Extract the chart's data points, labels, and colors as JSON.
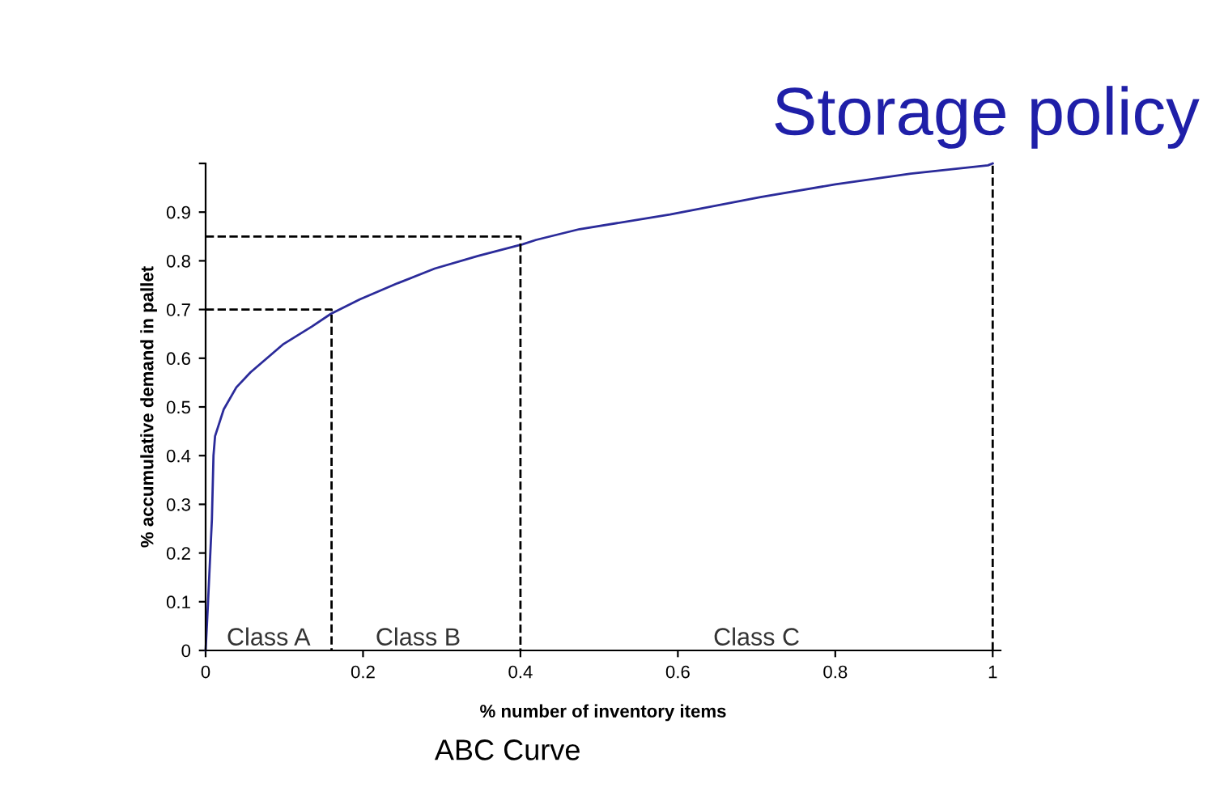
{
  "chart_data": {
    "type": "line",
    "title": "Storage policy",
    "xlabel": "% number of inventory items",
    "ylabel": "% accumulative demand in pallet",
    "annotations": [
      "ABC Curve",
      "Class A",
      "Class B",
      "Class C"
    ],
    "series": [
      {
        "color": "#2b2b9a",
        "line_style": "solid",
        "x": [
          0,
          0.003,
          0.008,
          0.01,
          0.012,
          0.023,
          0.039,
          0.057,
          0.098,
          0.135,
          0.159,
          0.196,
          0.244,
          0.291,
          0.346,
          0.403,
          0.42,
          0.475,
          0.59,
          0.705,
          0.8,
          0.896,
          0.994,
          1
        ],
        "values": [
          0,
          0.096,
          0.27,
          0.4,
          0.44,
          0.495,
          0.54,
          0.571,
          0.628,
          0.665,
          0.691,
          0.721,
          0.754,
          0.784,
          0.81,
          0.834,
          0.843,
          0.865,
          0.895,
          0.931,
          0.957,
          0.979,
          0.996,
          1
        ]
      },
      {
        "color": "#000000",
        "line_style": "dashed",
        "x": [
          0,
          0.16,
          0.16
        ],
        "values": [
          0.7,
          0.7,
          0
        ]
      },
      {
        "color": "#000000",
        "line_style": "dashed",
        "x": [
          0,
          0.4,
          0.4
        ],
        "values": [
          0.85,
          0.85,
          0
        ]
      }
    ],
    "ref_lines": [
      {
        "axis": "x",
        "value": 1,
        "color": "#000000",
        "line_style": "dashed"
      }
    ],
    "xlim": [
      0,
      1.01
    ],
    "xticks": [
      0,
      0.2,
      0.4,
      0.6,
      0.8,
      1
    ],
    "ylim": [
      0,
      1
    ],
    "yticks": [
      0,
      0.1,
      0.2,
      0.3,
      0.4,
      0.5,
      0.6,
      0.7,
      0.8,
      0.9,
      {
        "value": 1,
        "label": null
      }
    ],
    "grid": false,
    "legend": false,
    "marker": "none"
  }
}
